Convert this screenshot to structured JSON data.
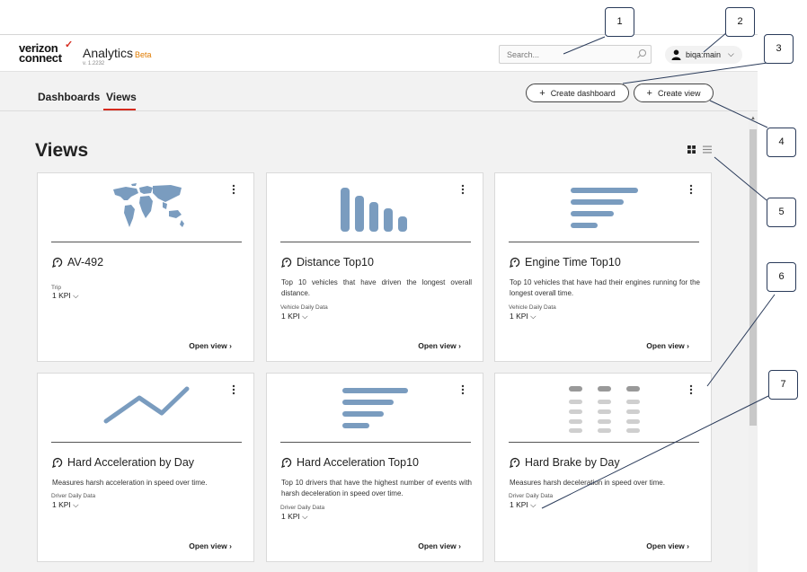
{
  "header": {
    "logo_line1": "verizon",
    "logo_line2": "connect",
    "app_name": "Analytics",
    "beta": "Beta",
    "version": "v. 1.2232",
    "search_placeholder": "Search...",
    "user": "biqa:main"
  },
  "nav": {
    "tabs": [
      {
        "label": "Dashboards",
        "active": false
      },
      {
        "label": "Views",
        "active": true
      }
    ],
    "create_dashboard": "Create dashboard",
    "create_view": "Create view"
  },
  "page": {
    "title": "Views",
    "view_modes": [
      "grid-icon",
      "list-icon"
    ]
  },
  "cards": [
    {
      "title": "AV-492",
      "description": "",
      "source": "Trip",
      "kpi": "1 KPI",
      "open": "Open view",
      "thumb": "world-map"
    },
    {
      "title": "Distance Top10",
      "description": "Top 10 vehicles that have driven the longest overall distance.",
      "source": "Vehicle Daily Data",
      "kpi": "1 KPI",
      "open": "Open view",
      "thumb": "bar-chart"
    },
    {
      "title": "Engine Time Top10",
      "description": "Top 10 vehicles that have had their engines running for the longest overall time.",
      "source": "Vehicle Daily Data",
      "kpi": "1 KPI",
      "open": "Open view",
      "thumb": "horizontal-bars"
    },
    {
      "title": "Hard Acceleration by Day",
      "description": "Measures harsh acceleration in speed over time.",
      "source": "Driver Daily Data",
      "kpi": "1 KPI",
      "open": "Open view",
      "thumb": "line-chart"
    },
    {
      "title": "Hard Acceleration Top10",
      "description": "Top 10 drivers that have the highest number of events with harsh deceleration in speed over time.",
      "source": "Driver Daily Data",
      "kpi": "1 KPI",
      "open": "Open view",
      "thumb": "horizontal-bars"
    },
    {
      "title": "Hard Brake by Day",
      "description": "Measures harsh deceleration in speed over time.",
      "source": "Driver Daily Data",
      "kpi": "1 KPI",
      "open": "Open view",
      "thumb": "table"
    }
  ],
  "callouts": [
    "1",
    "2",
    "3",
    "4",
    "5",
    "6",
    "7"
  ],
  "colors": {
    "accent": "#d52b1e",
    "thumb": "#7a9cbf",
    "beta": "#e07b00"
  }
}
